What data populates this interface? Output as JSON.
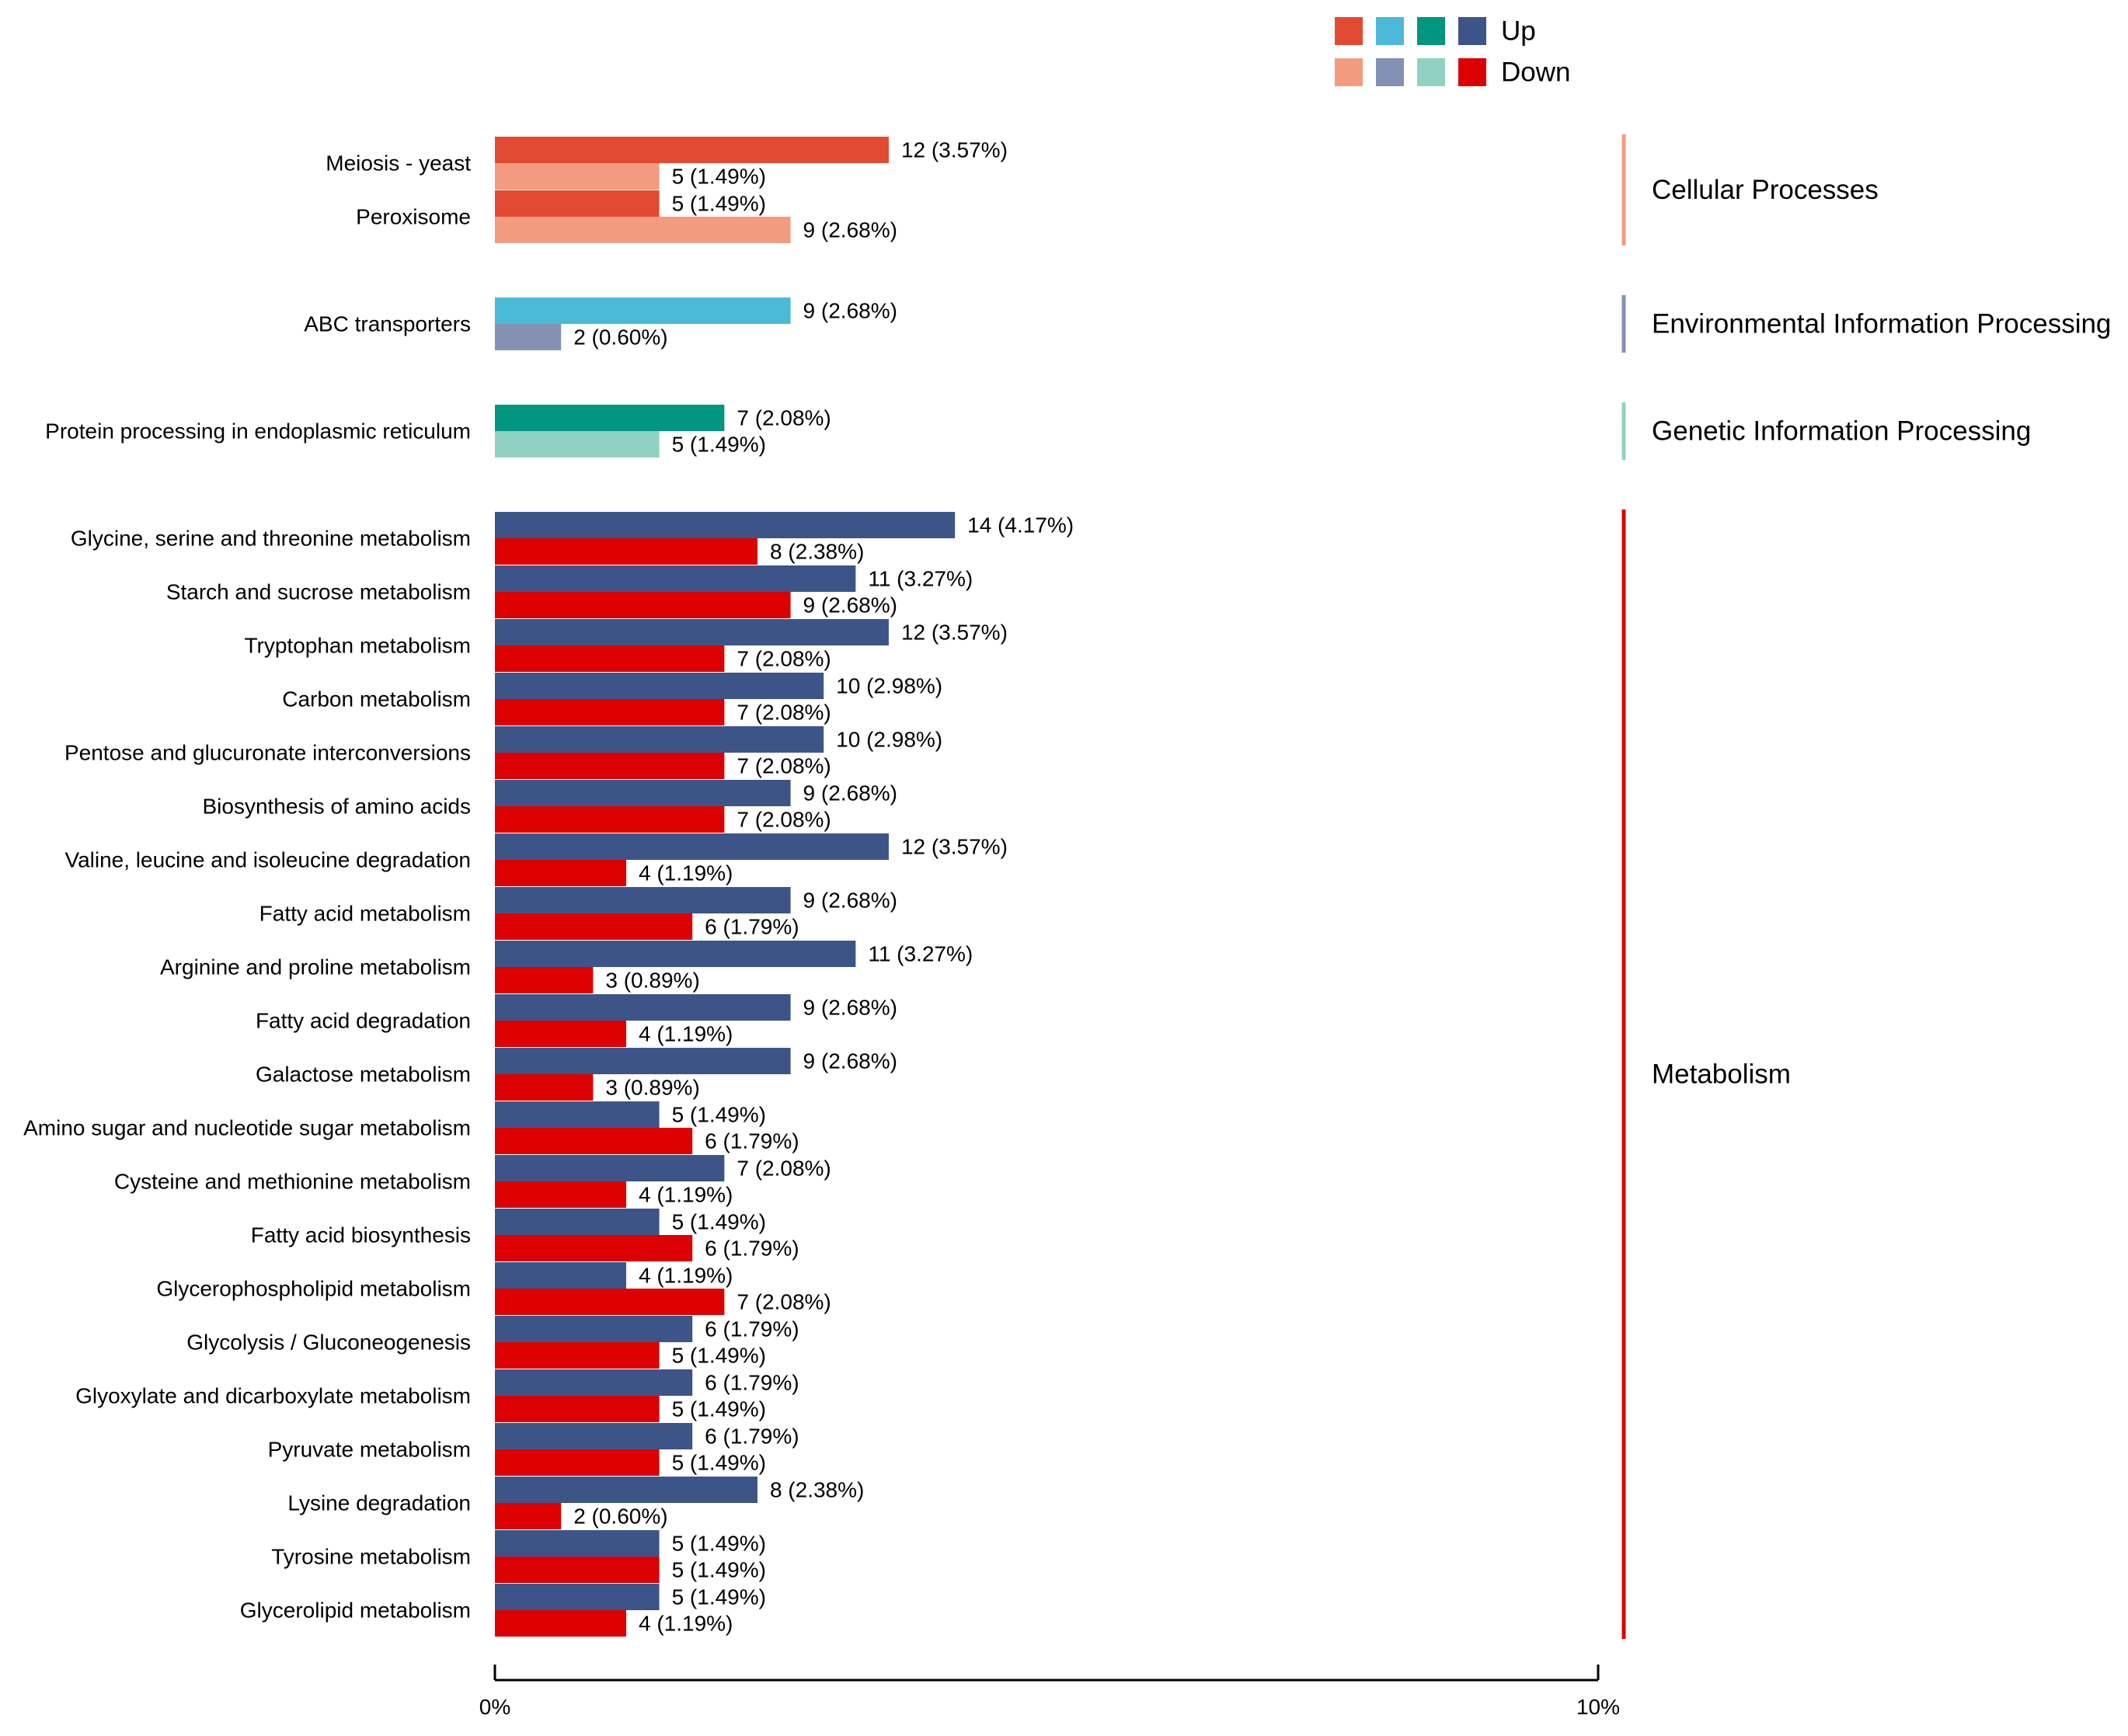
{
  "chart_data": {
    "type": "bar",
    "orientation": "horizontal",
    "x_axis": {
      "range": [
        0,
        10
      ],
      "ticks": [
        {
          "value": 0,
          "label": "0%"
        },
        {
          "value": 10,
          "label": "10%"
        }
      ],
      "grid": false
    },
    "legend": {
      "position": "top-right",
      "entries": [
        {
          "label": "Up",
          "colors": [
            "#e24a33",
            "#4bb9d8",
            "#00967f",
            "#3c5488"
          ]
        },
        {
          "label": "Down",
          "colors": [
            "#f39b7f",
            "#8491b4",
            "#91d1c2",
            "#dc0000"
          ]
        }
      ]
    },
    "groups": [
      {
        "name": "Cellular Processes",
        "up_color": "#e24a33",
        "down_color": "#f39b7f",
        "bracket_color": "#f39b7f",
        "pathways": [
          {
            "name": "Meiosis - yeast",
            "up": {
              "count": 12,
              "pct": 3.57,
              "label": "12 (3.57%)"
            },
            "down": {
              "count": 5,
              "pct": 1.49,
              "label": "5 (1.49%)"
            }
          },
          {
            "name": "Peroxisome",
            "up": {
              "count": 5,
              "pct": 1.49,
              "label": "5 (1.49%)"
            },
            "down": {
              "count": 9,
              "pct": 2.68,
              "label": "9 (2.68%)"
            }
          }
        ]
      },
      {
        "name": "Environmental Information Processing",
        "up_color": "#4bb9d8",
        "down_color": "#8491b4",
        "bracket_color": "#8491b4",
        "pathways": [
          {
            "name": "ABC transporters",
            "up": {
              "count": 9,
              "pct": 2.68,
              "label": "9 (2.68%)"
            },
            "down": {
              "count": 2,
              "pct": 0.6,
              "label": "2 (0.60%)"
            }
          }
        ]
      },
      {
        "name": "Genetic Information Processing",
        "up_color": "#00967f",
        "down_color": "#91d1c2",
        "bracket_color": "#91d1c2",
        "pathways": [
          {
            "name": "Protein processing in endoplasmic reticulum",
            "up": {
              "count": 7,
              "pct": 2.08,
              "label": "7 (2.08%)"
            },
            "down": {
              "count": 5,
              "pct": 1.49,
              "label": "5 (1.49%)"
            }
          }
        ]
      },
      {
        "name": "Metabolism",
        "up_color": "#3c5488",
        "down_color": "#dc0000",
        "bracket_color": "#dc0000",
        "pathways": [
          {
            "name": "Glycine, serine and threonine metabolism",
            "up": {
              "count": 14,
              "pct": 4.17,
              "label": "14 (4.17%)"
            },
            "down": {
              "count": 8,
              "pct": 2.38,
              "label": "8 (2.38%)"
            }
          },
          {
            "name": "Starch and sucrose metabolism",
            "up": {
              "count": 11,
              "pct": 3.27,
              "label": "11 (3.27%)"
            },
            "down": {
              "count": 9,
              "pct": 2.68,
              "label": "9 (2.68%)"
            }
          },
          {
            "name": "Tryptophan metabolism",
            "up": {
              "count": 12,
              "pct": 3.57,
              "label": "12 (3.57%)"
            },
            "down": {
              "count": 7,
              "pct": 2.08,
              "label": "7 (2.08%)"
            }
          },
          {
            "name": "Carbon metabolism",
            "up": {
              "count": 10,
              "pct": 2.98,
              "label": "10 (2.98%)"
            },
            "down": {
              "count": 7,
              "pct": 2.08,
              "label": "7 (2.08%)"
            }
          },
          {
            "name": "Pentose and glucuronate interconversions",
            "up": {
              "count": 10,
              "pct": 2.98,
              "label": "10 (2.98%)"
            },
            "down": {
              "count": 7,
              "pct": 2.08,
              "label": "7 (2.08%)"
            }
          },
          {
            "name": "Biosynthesis of amino acids",
            "up": {
              "count": 9,
              "pct": 2.68,
              "label": "9 (2.68%)"
            },
            "down": {
              "count": 7,
              "pct": 2.08,
              "label": "7 (2.08%)"
            }
          },
          {
            "name": "Valine, leucine and isoleucine degradation",
            "up": {
              "count": 12,
              "pct": 3.57,
              "label": "12 (3.57%)"
            },
            "down": {
              "count": 4,
              "pct": 1.19,
              "label": "4 (1.19%)"
            }
          },
          {
            "name": "Fatty acid metabolism",
            "up": {
              "count": 9,
              "pct": 2.68,
              "label": "9 (2.68%)"
            },
            "down": {
              "count": 6,
              "pct": 1.79,
              "label": "6 (1.79%)"
            }
          },
          {
            "name": "Arginine and proline metabolism",
            "up": {
              "count": 11,
              "pct": 3.27,
              "label": "11 (3.27%)"
            },
            "down": {
              "count": 3,
              "pct": 0.89,
              "label": "3 (0.89%)"
            }
          },
          {
            "name": "Fatty acid degradation",
            "up": {
              "count": 9,
              "pct": 2.68,
              "label": "9 (2.68%)"
            },
            "down": {
              "count": 4,
              "pct": 1.19,
              "label": "4 (1.19%)"
            }
          },
          {
            "name": "Galactose metabolism",
            "up": {
              "count": 9,
              "pct": 2.68,
              "label": "9 (2.68%)"
            },
            "down": {
              "count": 3,
              "pct": 0.89,
              "label": "3 (0.89%)"
            }
          },
          {
            "name": "Amino sugar and nucleotide sugar metabolism",
            "up": {
              "count": 5,
              "pct": 1.49,
              "label": "5 (1.49%)"
            },
            "down": {
              "count": 6,
              "pct": 1.79,
              "label": "6 (1.79%)"
            }
          },
          {
            "name": "Cysteine and methionine metabolism",
            "up": {
              "count": 7,
              "pct": 2.08,
              "label": "7 (2.08%)"
            },
            "down": {
              "count": 4,
              "pct": 1.19,
              "label": "4 (1.19%)"
            }
          },
          {
            "name": "Fatty acid biosynthesis",
            "up": {
              "count": 5,
              "pct": 1.49,
              "label": "5 (1.49%)"
            },
            "down": {
              "count": 6,
              "pct": 1.79,
              "label": "6 (1.79%)"
            }
          },
          {
            "name": "Glycerophospholipid metabolism",
            "up": {
              "count": 4,
              "pct": 1.19,
              "label": "4 (1.19%)"
            },
            "down": {
              "count": 7,
              "pct": 2.08,
              "label": "7 (2.08%)"
            }
          },
          {
            "name": "Glycolysis / Gluconeogenesis",
            "up": {
              "count": 6,
              "pct": 1.79,
              "label": "6 (1.79%)"
            },
            "down": {
              "count": 5,
              "pct": 1.49,
              "label": "5 (1.49%)"
            }
          },
          {
            "name": "Glyoxylate and dicarboxylate metabolism",
            "up": {
              "count": 6,
              "pct": 1.79,
              "label": "6 (1.79%)"
            },
            "down": {
              "count": 5,
              "pct": 1.49,
              "label": "5 (1.49%)"
            }
          },
          {
            "name": "Pyruvate metabolism",
            "up": {
              "count": 6,
              "pct": 1.79,
              "label": "6 (1.79%)"
            },
            "down": {
              "count": 5,
              "pct": 1.49,
              "label": "5 (1.49%)"
            }
          },
          {
            "name": "Lysine degradation",
            "up": {
              "count": 8,
              "pct": 2.38,
              "label": "8 (2.38%)"
            },
            "down": {
              "count": 2,
              "pct": 0.6,
              "label": "2 (0.60%)"
            }
          },
          {
            "name": "Tyrosine metabolism",
            "up": {
              "count": 5,
              "pct": 1.49,
              "label": "5 (1.49%)"
            },
            "down": {
              "count": 5,
              "pct": 1.49,
              "label": "5 (1.49%)"
            }
          },
          {
            "name": "Glycerolipid metabolism",
            "up": {
              "count": 5,
              "pct": 1.49,
              "label": "5 (1.49%)"
            },
            "down": {
              "count": 4,
              "pct": 1.19,
              "label": "4 (1.19%)"
            }
          }
        ]
      }
    ]
  }
}
